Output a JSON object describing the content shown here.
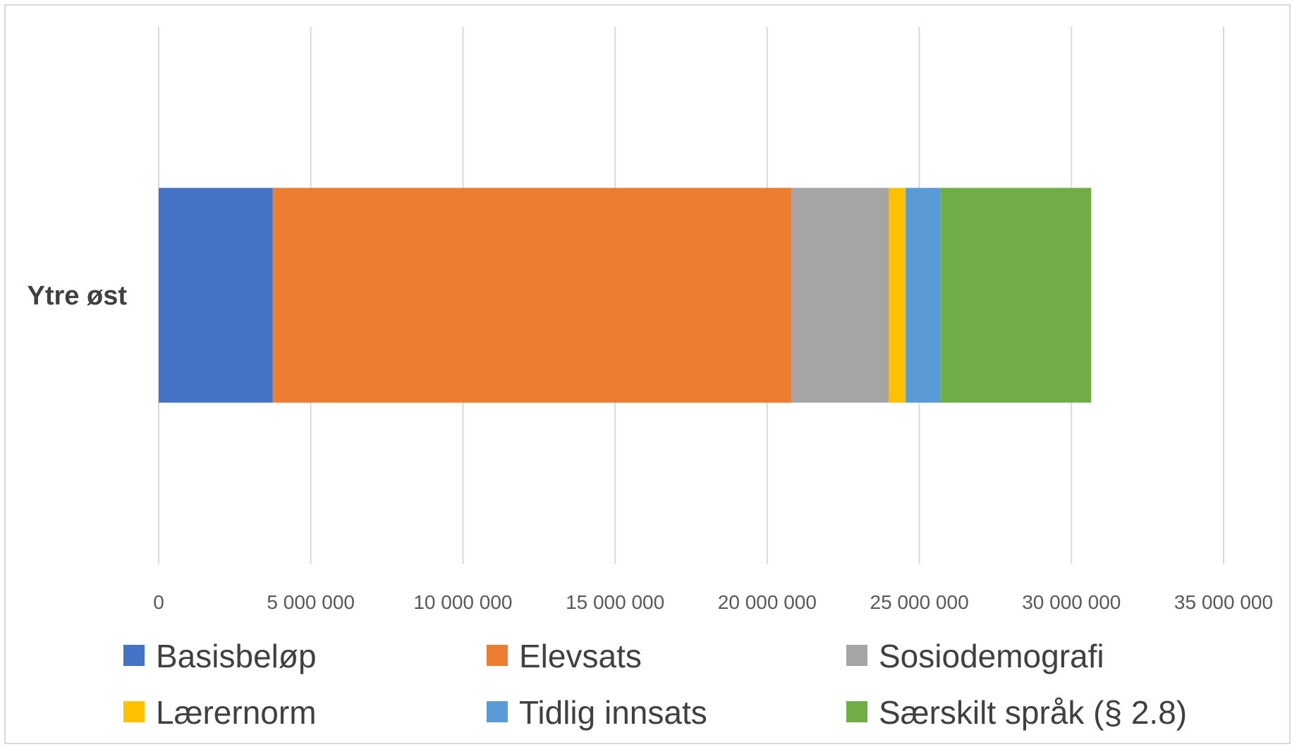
{
  "chart_data": {
    "type": "bar",
    "orientation": "horizontal",
    "stacked": true,
    "categories": [
      "Ytre øst"
    ],
    "series": [
      {
        "name": "Basisbeløp",
        "color": "#4472C4",
        "values": [
          3750000
        ]
      },
      {
        "name": "Elevsats",
        "color": "#ED7D31",
        "values": [
          17050000
        ]
      },
      {
        "name": "Sosiodemografi",
        "color": "#A5A5A5",
        "values": [
          3200000
        ]
      },
      {
        "name": "Lærernorm",
        "color": "#FFC000",
        "values": [
          550000
        ]
      },
      {
        "name": "Tidlig innsats",
        "color": "#5B9BD5",
        "values": [
          1150000
        ]
      },
      {
        "name": "Særskilt språk (§ 2.8)",
        "color": "#70AD47",
        "values": [
          4950000
        ]
      }
    ],
    "xlim": [
      0,
      35000000
    ],
    "xticks": [
      0,
      5000000,
      10000000,
      15000000,
      20000000,
      25000000,
      30000000,
      35000000
    ],
    "xtick_labels": [
      "0",
      "5 000 000",
      "10 000 000",
      "15 000 000",
      "20 000 000",
      "25 000 000",
      "30 000 000",
      "35 000 000"
    ],
    "grid": true,
    "legend_position": "bottom",
    "title": "",
    "xlabel": "",
    "ylabel": ""
  }
}
